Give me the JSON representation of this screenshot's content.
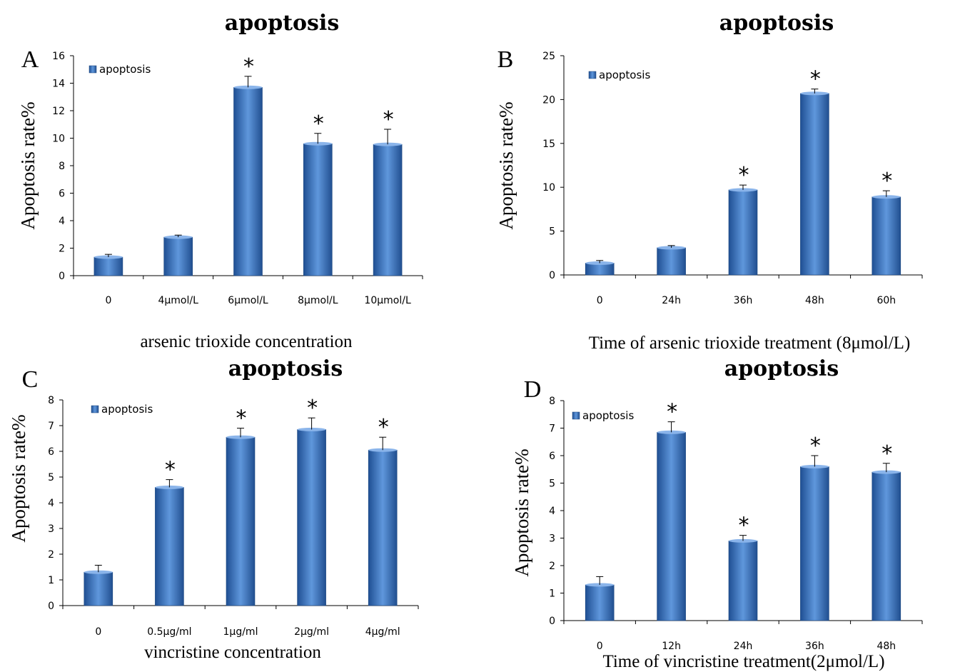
{
  "chart_data": [
    {
      "type": "bar",
      "panel": "A",
      "title": "apoptosis",
      "xlabel": "arsenic trioxide concentration",
      "ylabel": "Apoptosis rate%",
      "ylim": [
        0,
        16
      ],
      "yticks": [
        "0",
        "2",
        "4",
        "6",
        "8",
        "10",
        "12",
        "14",
        "16"
      ],
      "categories": [
        "0",
        "4μmol/L",
        "6μmol/L",
        "8μmol/L",
        "10μmol/L"
      ],
      "series": [
        {
          "name": "apoptosis",
          "values": [
            1.35,
            2.8,
            13.7,
            9.6,
            9.55
          ],
          "errors": [
            0.2,
            0.15,
            0.8,
            0.75,
            1.1
          ]
        }
      ],
      "significant": [
        "",
        "",
        "*",
        "*",
        "*"
      ],
      "legend": "top-left",
      "grid": false,
      "bar_color": "#3f77c4"
    },
    {
      "type": "bar",
      "panel": "B",
      "title": "apoptosis",
      "xlabel": "Time of arsenic trioxide treatment (8μmol/L)",
      "ylabel": "Apoptosis rate%",
      "ylim": [
        0,
        25
      ],
      "yticks": [
        "0",
        "5",
        "10",
        "15",
        "20",
        "25"
      ],
      "categories": [
        "0",
        "24h",
        "36h",
        "48h",
        "60h"
      ],
      "series": [
        {
          "name": "apoptosis",
          "values": [
            1.35,
            3.1,
            9.7,
            20.7,
            8.9
          ],
          "errors": [
            0.3,
            0.25,
            0.55,
            0.5,
            0.7
          ]
        }
      ],
      "significant": [
        "",
        "",
        "*",
        "*",
        "*"
      ],
      "legend": "top-left",
      "grid": false,
      "bar_color": "#3f77c4"
    },
    {
      "type": "bar",
      "panel": "C",
      "title": "apoptosis",
      "xlabel": "vincristine concentration",
      "ylabel": "Apoptosis rate%",
      "ylim": [
        0,
        8
      ],
      "yticks": [
        "0",
        "1",
        "2",
        "3",
        "4",
        "5",
        "6",
        "7",
        "8"
      ],
      "categories": [
        "0",
        "0.5μg/ml",
        "1μg/ml",
        "2μg/ml",
        "4μg/ml"
      ],
      "series": [
        {
          "name": "apoptosis",
          "values": [
            1.3,
            4.6,
            6.55,
            6.85,
            6.05
          ],
          "errors": [
            0.27,
            0.3,
            0.35,
            0.45,
            0.5
          ]
        }
      ],
      "significant": [
        "",
        "*",
        "*",
        "*",
        "*"
      ],
      "legend": "top-left",
      "grid": false,
      "bar_color": "#3f77c4"
    },
    {
      "type": "bar",
      "panel": "D",
      "title": "apoptosis",
      "xlabel": "Time of vincristine treatment(2μmol/L)",
      "ylabel": "Apoptosis rate%",
      "ylim": [
        0,
        8
      ],
      "yticks": [
        "0",
        "1",
        "2",
        "3",
        "4",
        "5",
        "6",
        "7",
        "8"
      ],
      "categories": [
        "0",
        "12h",
        "24h",
        "36h",
        "48h"
      ],
      "series": [
        {
          "name": "apoptosis",
          "values": [
            1.3,
            6.85,
            2.9,
            5.6,
            5.4
          ],
          "errors": [
            0.3,
            0.38,
            0.2,
            0.4,
            0.32
          ]
        }
      ],
      "significant": [
        "",
        "*",
        "*",
        "*",
        "*"
      ],
      "legend": "top-left",
      "grid": false,
      "bar_color": "#3f77c4"
    }
  ]
}
